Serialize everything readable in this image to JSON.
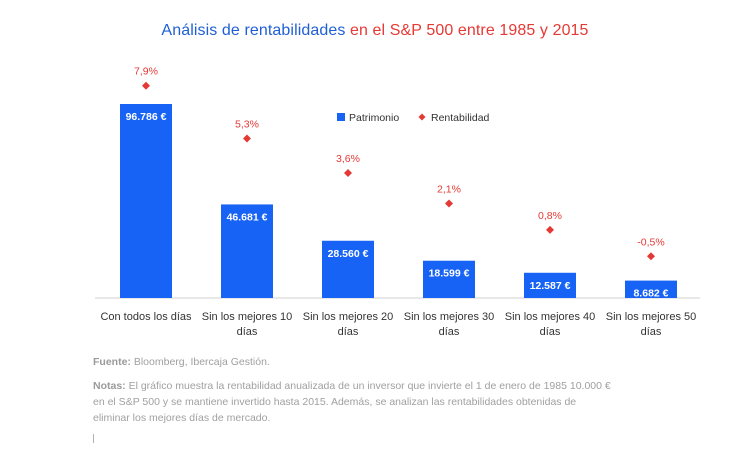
{
  "title": {
    "part1": "Análisis de rentabilidades",
    "part2": " en el S&P 500 entre 1985 y 2015",
    "color1": "#1f5fd6",
    "color2": "#e53935"
  },
  "legend": {
    "patrimonio": "Patrimonio",
    "rentabilidad": "Rentabilidad"
  },
  "colors": {
    "bar": "#1763f5",
    "marker": "#e53935",
    "label_text": "#e53935"
  },
  "chart_data": {
    "type": "bar",
    "title": "Análisis de rentabilidades en el S&P 500 entre 1985 y 2015",
    "categories": [
      [
        "Con todos los días"
      ],
      [
        "Sin los mejores 10",
        "días"
      ],
      [
        "Sin los mejores 20",
        "días"
      ],
      [
        "Sin los mejores 30",
        "días"
      ],
      [
        "Sin los mejores 40",
        "días"
      ],
      [
        "Sin los mejores 50",
        "días"
      ]
    ],
    "series": [
      {
        "name": "Patrimonio",
        "type": "bar",
        "values": [
          96786,
          46681,
          28560,
          18599,
          12587,
          8682
        ],
        "labels": [
          "96.786 €",
          "46.681 €",
          "28.560 €",
          "18.599 €",
          "12.587 €",
          "8.682 €"
        ]
      },
      {
        "name": "Rentabilidad",
        "type": "scatter",
        "values": [
          7.9,
          5.3,
          3.6,
          2.1,
          0.8,
          -0.5
        ],
        "labels": [
          "7,9%",
          "5,3%",
          "3,6%",
          "2,1%",
          "0,8%",
          "-0,5%"
        ]
      }
    ],
    "legend_position": "top-right",
    "grid": false
  },
  "source": {
    "label": "Fuente:",
    "text": " Bloomberg, Ibercaja Gestión."
  },
  "notes": {
    "label": "Notas:",
    "text": " El gráfico muestra la rentabilidad anualizada de un inversor que invierte el 1 de enero de 1985 10.000 € en el S&P 500 y se mantiene invertido hasta 2015. Además, se analizan las rentabilidades obtenidas de eliminar los mejores días de mercado."
  }
}
